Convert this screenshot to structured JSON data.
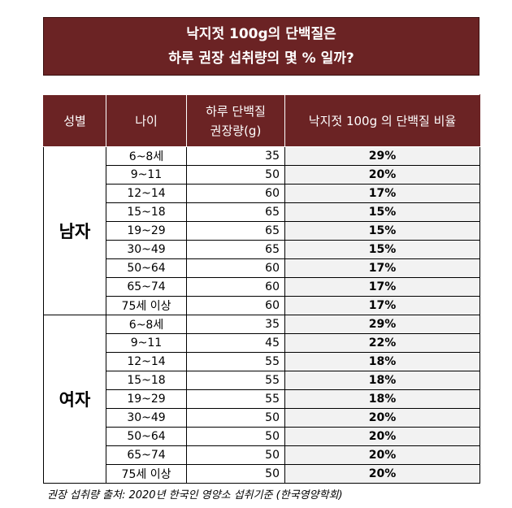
{
  "title": {
    "line1": "낙지젓 100g의 단백질은",
    "line2": "하루 권장 섭취량의 몇 % 일까?"
  },
  "table": {
    "headers": {
      "gender": "성별",
      "age": "나이",
      "intake_line1": "하루 단백질",
      "intake_line2": "권장량(g)",
      "ratio": "낙지젓 100g 의 단백질 비율"
    },
    "groups": [
      {
        "gender": "남자",
        "rows": [
          {
            "age": "6~8세",
            "amount": "35",
            "ratio": "29%"
          },
          {
            "age": "9~11",
            "amount": "50",
            "ratio": "20%"
          },
          {
            "age": "12~14",
            "amount": "60",
            "ratio": "17%"
          },
          {
            "age": "15~18",
            "amount": "65",
            "ratio": "15%"
          },
          {
            "age": "19~29",
            "amount": "65",
            "ratio": "15%"
          },
          {
            "age": "30~49",
            "amount": "65",
            "ratio": "15%"
          },
          {
            "age": "50~64",
            "amount": "60",
            "ratio": "17%"
          },
          {
            "age": "65~74",
            "amount": "60",
            "ratio": "17%"
          },
          {
            "age": "75세 이상",
            "amount": "60",
            "ratio": "17%"
          }
        ]
      },
      {
        "gender": "여자",
        "rows": [
          {
            "age": "6~8세",
            "amount": "35",
            "ratio": "29%"
          },
          {
            "age": "9~11",
            "amount": "45",
            "ratio": "22%"
          },
          {
            "age": "12~14",
            "amount": "55",
            "ratio": "18%"
          },
          {
            "age": "15~18",
            "amount": "55",
            "ratio": "18%"
          },
          {
            "age": "19~29",
            "amount": "55",
            "ratio": "18%"
          },
          {
            "age": "30~49",
            "amount": "50",
            "ratio": "20%"
          },
          {
            "age": "50~64",
            "amount": "50",
            "ratio": "20%"
          },
          {
            "age": "65~74",
            "amount": "50",
            "ratio": "20%"
          },
          {
            "age": "75세 이상",
            "amount": "50",
            "ratio": "20%"
          }
        ]
      }
    ]
  },
  "source": "권장 섭취량 출처: 2020년 한국인 영양소 섭취기준 (한국영양학회)",
  "colors": {
    "header_bg": "#6b2324",
    "ratio_bg": "#f2f2f2"
  }
}
